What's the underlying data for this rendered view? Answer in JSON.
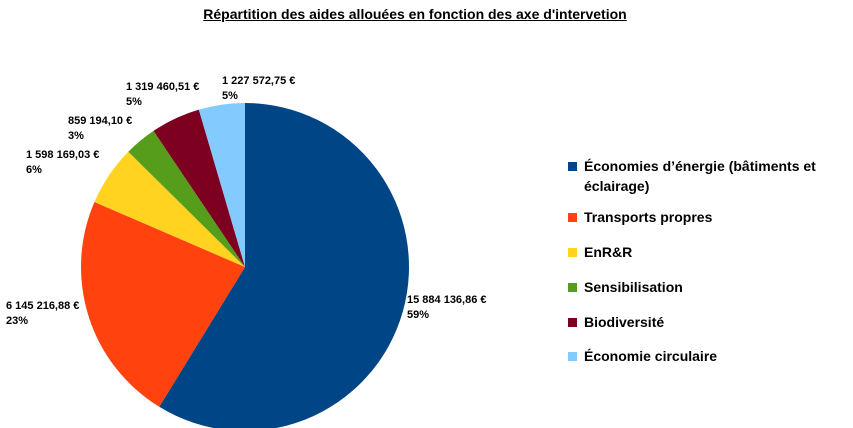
{
  "chart_data": {
    "type": "pie",
    "title": "Répartition des aides allouées en fonction des axe d'intervetion",
    "slices": [
      {
        "name": "Économies d’énergie (bâtiments et éclairage)",
        "value": 15884136.86,
        "value_label": "15 884 136,86 €",
        "percent_label": "59%",
        "color": "#004586"
      },
      {
        "name": "Transports propres",
        "value": 6145216.88,
        "value_label": "6 145 216,88 €",
        "percent_label": "23%",
        "color": "#ff420e"
      },
      {
        "name": "EnR&R",
        "value": 1598169.03,
        "value_label": "1 598 169,03 €",
        "percent_label": "6%",
        "color": "#ffd320"
      },
      {
        "name": "Sensibilisation",
        "value": 859194.1,
        "value_label": "859 194,10 €",
        "percent_label": "3%",
        "color": "#579d1c"
      },
      {
        "name": "Biodiversité",
        "value": 1319460.51,
        "value_label": "1 319 460,51 €",
        "percent_label": "5%",
        "color": "#7e0021"
      },
      {
        "name": "Économie circulaire",
        "value": 1227572.75,
        "value_label": "1 227 572,75 €",
        "percent_label": "5%",
        "color": "#83caff"
      }
    ],
    "legend_position": "right"
  }
}
